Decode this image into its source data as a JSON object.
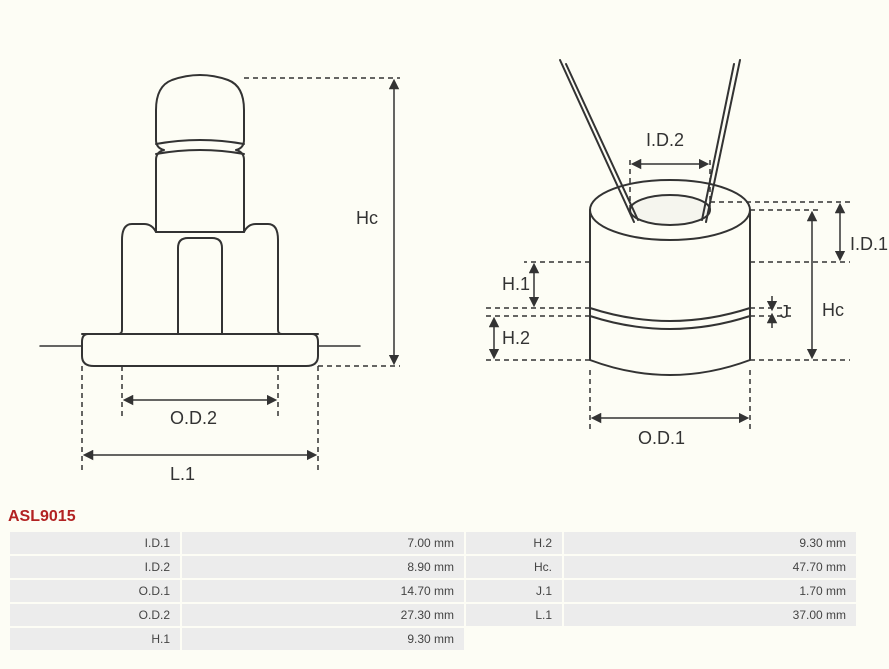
{
  "part_number": "ASL9015",
  "diagram_style": {
    "stroke": "#333333",
    "stroke_width": 2,
    "dash": "5,4",
    "arrow_fill": "#333333",
    "text_color": "#333333",
    "label_fontsize": 18,
    "background": "#fdfdf5"
  },
  "left_labels": {
    "hc": "Hc",
    "od2": "O.D.2",
    "l1": "L.1"
  },
  "right_labels": {
    "id2": "I.D.2",
    "id1": "I.D.1",
    "hc": "Hc",
    "j": "J",
    "h1": "H.1",
    "h2": "H.2",
    "od1": "O.D.1"
  },
  "table": {
    "rows": [
      {
        "k1": "I.D.1",
        "v1": "7.00 mm",
        "k2": "H.2",
        "v2": "9.30 mm"
      },
      {
        "k1": "I.D.2",
        "v1": "8.90 mm",
        "k2": "Hc.",
        "v2": "47.70 mm"
      },
      {
        "k1": "O.D.1",
        "v1": "14.70 mm",
        "k2": "J.1",
        "v2": "1.70 mm"
      },
      {
        "k1": "O.D.2",
        "v1": "27.30 mm",
        "k2": "L.1",
        "v2": "37.00 mm"
      },
      {
        "k1": "H.1",
        "v1": "9.30 mm",
        "k2": "",
        "v2": ""
      }
    ],
    "cell_bg": "#ececec",
    "text_color": "#444444",
    "fontsize": 12
  }
}
